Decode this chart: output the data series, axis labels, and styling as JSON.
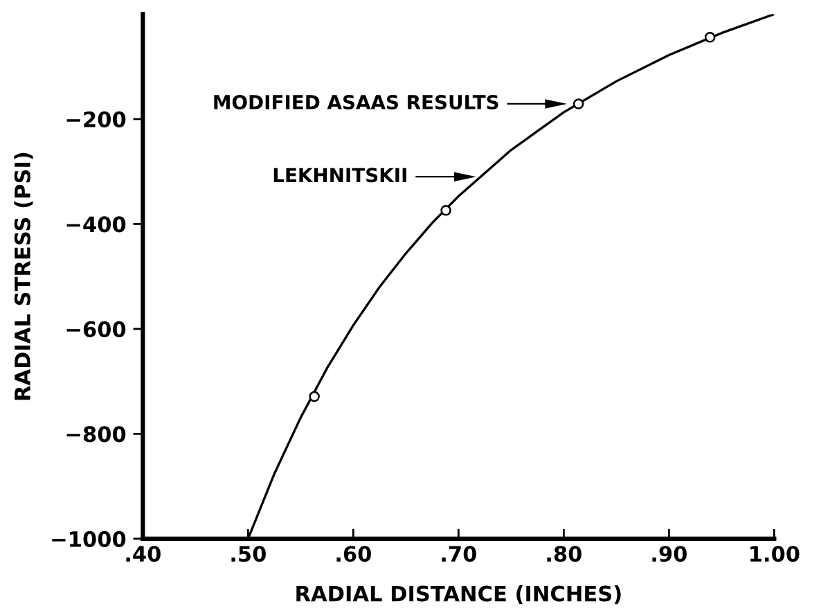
{
  "chart_data": {
    "type": "line",
    "xlabel": "RADIAL DISTANCE (INCHES)",
    "ylabel": "RADIAL STRESS (PSI)",
    "xlim": [
      0.4,
      1.0
    ],
    "ylim": [
      -1000,
      0
    ],
    "xticks": [
      {
        "value": 0.4,
        "label": ".40"
      },
      {
        "value": 0.5,
        "label": ".50"
      },
      {
        "value": 0.6,
        "label": ".60"
      },
      {
        "value": 0.7,
        "label": ".70"
      },
      {
        "value": 0.8,
        "label": ".80"
      },
      {
        "value": 0.9,
        "label": ".90"
      },
      {
        "value": 1.0,
        "label": "1.00"
      }
    ],
    "yticks": [
      {
        "value": -200,
        "label": "−200"
      },
      {
        "value": -400,
        "label": "−400"
      },
      {
        "value": -600,
        "label": "−600"
      },
      {
        "value": -800,
        "label": "−800"
      },
      {
        "value": -1000,
        "label": "−1000"
      }
    ],
    "grid": false,
    "legend": false,
    "series": [
      {
        "type": "line",
        "color": "#000000",
        "marker": "none",
        "line_style": "solid",
        "x": [
          0.5,
          0.525,
          0.55,
          0.575,
          0.6,
          0.625,
          0.65,
          0.675,
          0.7,
          0.75,
          0.8,
          0.85,
          0.9,
          0.95,
          1.0
        ],
        "values": [
          -1000,
          -876,
          -769,
          -675,
          -593,
          -520,
          -456,
          -398,
          -347,
          -259,
          -187,
          -128,
          -78,
          -36,
          0
        ]
      },
      {
        "type": "scatter",
        "color": "#000000",
        "marker": "circle",
        "x": [
          0.563,
          0.688,
          0.814,
          0.939
        ],
        "values": [
          -729,
          -374,
          -171,
          -44
        ]
      }
    ],
    "annotations": [
      "MODIFIED ASAAS RESULTS",
      "LEKHNITSKII"
    ]
  }
}
